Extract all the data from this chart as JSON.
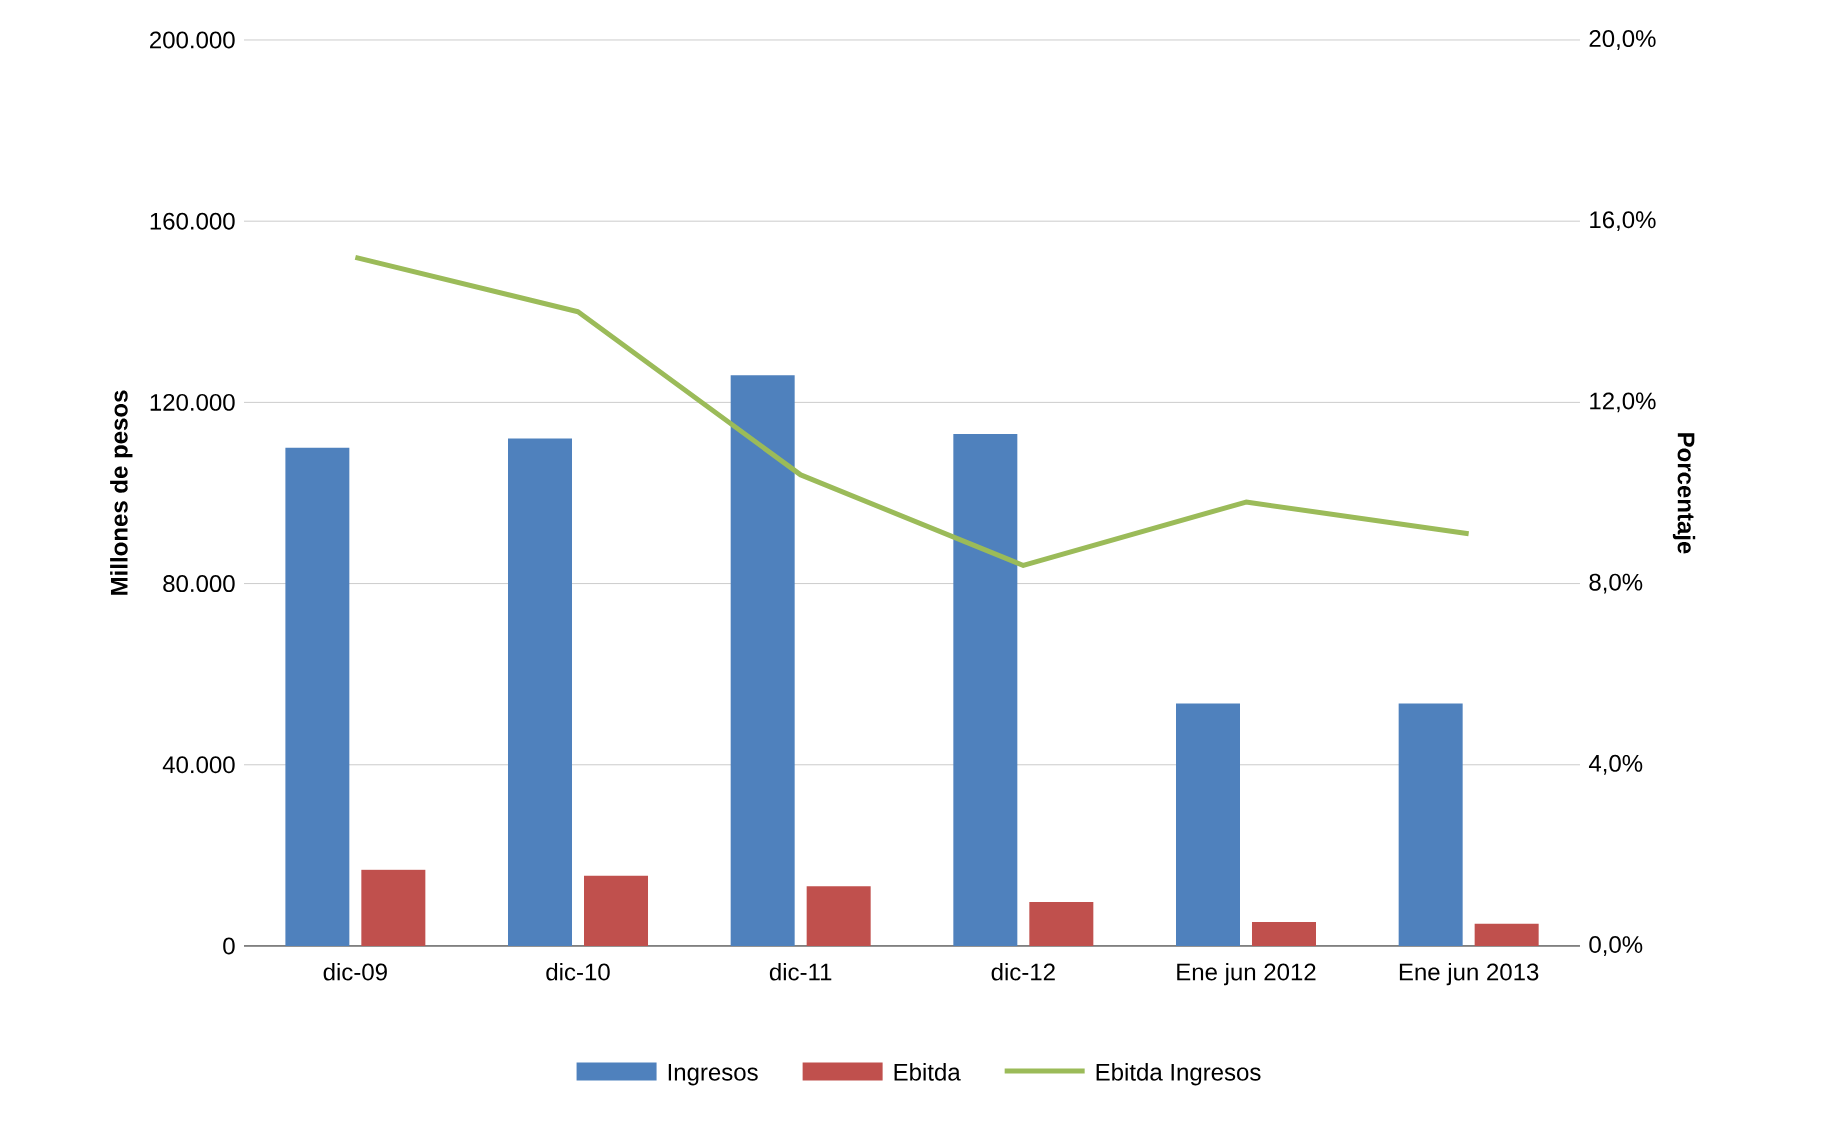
{
  "chart_data": {
    "type": "bar",
    "ylabel": "Millones de pesos",
    "y2label": "Porcentaje",
    "categories": [
      "dic-09",
      "dic-10",
      "dic-11",
      "dic-12",
      "Ene jun 2012",
      "Ene jun 2013"
    ],
    "series": [
      {
        "name": "Ingresos",
        "color": "#4f81bd",
        "values": [
          110000,
          112000,
          126000,
          113000,
          53500,
          53500
        ]
      },
      {
        "name": "Ebitda",
        "color": "#c0504d",
        "values": [
          16800,
          15500,
          13200,
          9700,
          5300,
          4900
        ]
      },
      {
        "name": "Ebitda Ingresos",
        "type": "line",
        "axis": "y2",
        "color": "#9bbb59",
        "values": [
          15.2,
          14.0,
          10.4,
          8.4,
          9.8,
          9.1
        ]
      }
    ],
    "ylim": [
      0,
      200000
    ],
    "yticks": [
      {
        "value": 0,
        "label": "0"
      },
      {
        "value": 40000,
        "label": "40.000"
      },
      {
        "value": 80000,
        "label": "80.000"
      },
      {
        "value": 120000,
        "label": "120.000"
      },
      {
        "value": 160000,
        "label": "160.000"
      },
      {
        "value": 200000,
        "label": "200.000"
      }
    ],
    "y2lim": [
      0,
      20
    ],
    "y2ticks": [
      {
        "value": 0,
        "label": "0,0%"
      },
      {
        "value": 4,
        "label": "4,0%"
      },
      {
        "value": 8,
        "label": "8,0%"
      },
      {
        "value": 12,
        "label": "12,0%"
      },
      {
        "value": 16,
        "label": "16,0%"
      },
      {
        "value": 20,
        "label": "20,0%"
      }
    ],
    "grid": "y",
    "legend": "bottom"
  }
}
